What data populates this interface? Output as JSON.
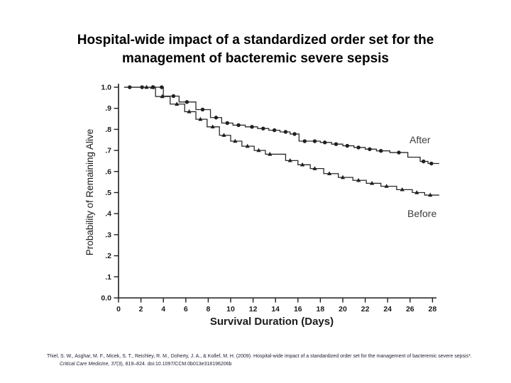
{
  "slide": {
    "title_line1": "Hospital-wide impact of a standardized order set for the",
    "title_line2": "management of bacteremic severe sepsis",
    "citation_part1": "Thiel, S. W., Asghar, M. F., Micek, S. T., Reichley, R. M., Doherty, J. A., & Kollef, M. H. (2009). Hospital-wide impact of a standardized order set for the management of bacteremic severe sepsis*. ",
    "citation_part2": "Critical Care Medicine, 37",
    "citation_part3": "(3), 819–824. doi:10.1097/CCM.0b013e318196206b"
  },
  "chart_data": {
    "type": "line",
    "subtype": "kaplan-meier-step",
    "title": "",
    "xlabel": "Survival Duration (Days)",
    "ylabel": "Probability of Remaining Alive",
    "xlim": [
      0,
      28
    ],
    "ylim": [
      0.0,
      1.0
    ],
    "grid": false,
    "legend_position": "labels-on-plot",
    "curve_color": "#1f1f1f",
    "x_tick_labels": [
      "0",
      "2",
      "4",
      "6",
      "8",
      "10",
      "12",
      "14",
      "16",
      "18",
      "20",
      "22",
      "24",
      "26",
      "28"
    ],
    "y_tick_labels": [
      "1.0",
      ".9",
      ".8",
      ".7",
      ".6",
      ".5",
      ".4",
      ".3",
      ".2",
      ".1",
      "0.0"
    ],
    "series": [
      {
        "name": "After",
        "marker": "circle",
        "start_day": 0.5,
        "start_prob": 1.0,
        "end_day": 28.6,
        "drops": [
          [
            4.0,
            0.958
          ],
          [
            5.4,
            0.93
          ],
          [
            6.9,
            0.894
          ],
          [
            8.2,
            0.856
          ],
          [
            9.2,
            0.83
          ],
          [
            10.2,
            0.82
          ],
          [
            11.3,
            0.812
          ],
          [
            12.4,
            0.804
          ],
          [
            13.4,
            0.796
          ],
          [
            14.4,
            0.788
          ],
          [
            15.3,
            0.778
          ],
          [
            16.1,
            0.744
          ],
          [
            18.0,
            0.738
          ],
          [
            19.0,
            0.73
          ],
          [
            20.0,
            0.722
          ],
          [
            21.0,
            0.714
          ],
          [
            22.0,
            0.706
          ],
          [
            23.0,
            0.698
          ],
          [
            24.2,
            0.69
          ],
          [
            25.8,
            0.668
          ],
          [
            26.9,
            0.648
          ],
          [
            27.6,
            0.638
          ]
        ],
        "markers": [
          [
            1.0,
            1.0
          ],
          [
            2.1,
            1.0
          ],
          [
            3.1,
            1.0
          ],
          [
            3.85,
            1.0
          ],
          [
            4.9,
            0.958
          ],
          [
            6.1,
            0.93
          ],
          [
            7.5,
            0.894
          ],
          [
            8.7,
            0.856
          ],
          [
            9.7,
            0.83
          ],
          [
            10.7,
            0.82
          ],
          [
            11.9,
            0.812
          ],
          [
            12.9,
            0.804
          ],
          [
            13.9,
            0.796
          ],
          [
            14.9,
            0.788
          ],
          [
            15.7,
            0.778
          ],
          [
            16.6,
            0.744
          ],
          [
            17.5,
            0.744
          ],
          [
            18.4,
            0.738
          ],
          [
            19.4,
            0.73
          ],
          [
            20.4,
            0.722
          ],
          [
            21.4,
            0.714
          ],
          [
            22.4,
            0.706
          ],
          [
            23.4,
            0.698
          ],
          [
            25.0,
            0.69
          ],
          [
            27.2,
            0.648
          ],
          [
            27.9,
            0.638
          ]
        ]
      },
      {
        "name": "Before",
        "marker": "triangle",
        "start_day": 0.5,
        "start_prob": 1.0,
        "end_day": 28.6,
        "drops": [
          [
            3.3,
            0.956
          ],
          [
            4.6,
            0.92
          ],
          [
            5.9,
            0.884
          ],
          [
            6.9,
            0.848
          ],
          [
            7.9,
            0.812
          ],
          [
            9.0,
            0.772
          ],
          [
            10.0,
            0.744
          ],
          [
            11.0,
            0.72
          ],
          [
            12.1,
            0.7
          ],
          [
            13.1,
            0.682
          ],
          [
            14.9,
            0.652
          ],
          [
            16.0,
            0.632
          ],
          [
            17.1,
            0.614
          ],
          [
            18.3,
            0.59
          ],
          [
            19.6,
            0.572
          ],
          [
            20.9,
            0.558
          ],
          [
            22.1,
            0.544
          ],
          [
            23.4,
            0.53
          ],
          [
            24.8,
            0.514
          ],
          [
            26.2,
            0.5
          ],
          [
            27.3,
            0.488
          ]
        ],
        "markers": [
          [
            2.5,
            1.0
          ],
          [
            3.0,
            1.0
          ],
          [
            3.9,
            0.956
          ],
          [
            5.2,
            0.92
          ],
          [
            6.3,
            0.884
          ],
          [
            7.3,
            0.848
          ],
          [
            8.4,
            0.812
          ],
          [
            9.4,
            0.772
          ],
          [
            10.4,
            0.744
          ],
          [
            11.5,
            0.72
          ],
          [
            12.5,
            0.7
          ],
          [
            13.5,
            0.682
          ],
          [
            15.3,
            0.652
          ],
          [
            16.4,
            0.632
          ],
          [
            17.5,
            0.614
          ],
          [
            18.8,
            0.59
          ],
          [
            20.0,
            0.572
          ],
          [
            21.4,
            0.558
          ],
          [
            22.6,
            0.544
          ],
          [
            23.9,
            0.53
          ],
          [
            25.3,
            0.514
          ],
          [
            26.6,
            0.5
          ],
          [
            27.8,
            0.488
          ]
        ]
      }
    ]
  }
}
